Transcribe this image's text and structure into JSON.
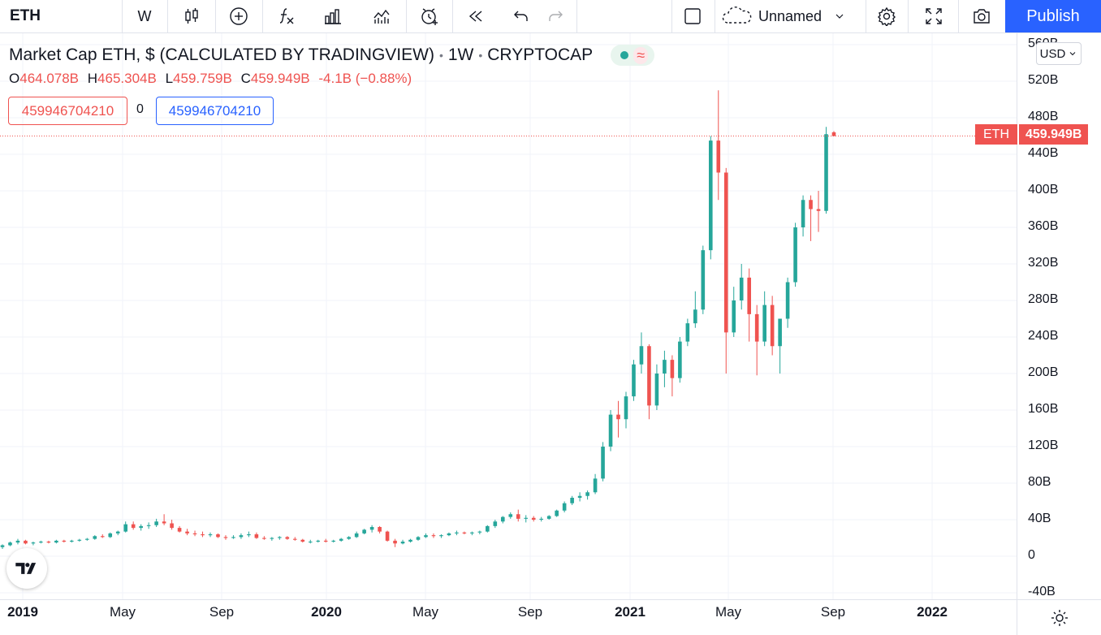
{
  "toolbar": {
    "symbol": "ETH",
    "interval": "W",
    "layout_name": "Unnamed",
    "publish_label": "Publish",
    "icons": [
      "candles-icon",
      "plus-circle-icon",
      "indicators-icon",
      "compare-icon",
      "alert-icon",
      "replay-icon",
      "undo-icon",
      "redo-icon",
      "layout-icon",
      "cloud-icon",
      "chevron-down-icon",
      "gear-icon",
      "fullscreen-icon",
      "camera-icon"
    ]
  },
  "legend": {
    "title": "Market Cap ETH, $ (CALCULATED BY TRADINGVIEW)",
    "interval": "1W",
    "exchange": "CRYPTOCAP",
    "status_wave": "≈",
    "ohlc": {
      "o_key": "O",
      "o": "464.078B",
      "h_key": "H",
      "h": "465.304B",
      "l_key": "L",
      "l": "459.759B",
      "c_key": "C",
      "c": "459.949B",
      "change": "-4.1B (−0.88%)"
    },
    "sell_value": "459946704210",
    "spread": "0",
    "buy_value": "459946704210"
  },
  "price_scale": {
    "currency": "USD",
    "ticks": [
      "560B",
      "520B",
      "480B",
      "440B",
      "400B",
      "360B",
      "320B",
      "280B",
      "240B",
      "200B",
      "160B",
      "120B",
      "80B",
      "40B",
      "0",
      "-40B"
    ],
    "last_symbol": "ETH",
    "last_value": "459.949B"
  },
  "time_scale": {
    "ticks": [
      "2019",
      "May",
      "Sep",
      "2020",
      "May",
      "Sep",
      "2021",
      "May",
      "Sep",
      "2022"
    ]
  },
  "colors": {
    "up": "#26a69a",
    "down": "#ef5350",
    "accent": "#2962ff",
    "grid": "#f0f3fa"
  },
  "chart_data": {
    "type": "candlestick",
    "title": "Market Cap ETH, $ (CALCULATED BY TRADINGVIEW)",
    "interval": "1W",
    "ylim": [
      -40,
      560
    ],
    "y_unit": "B USD",
    "last_close": 459.949,
    "candles": [
      {
        "o": 10,
        "h": 13,
        "l": 8,
        "c": 12
      },
      {
        "o": 12,
        "h": 16,
        "l": 11,
        "c": 15
      },
      {
        "o": 15,
        "h": 19,
        "l": 13,
        "c": 17
      },
      {
        "o": 17,
        "h": 18,
        "l": 13,
        "c": 14
      },
      {
        "o": 14,
        "h": 16,
        "l": 12,
        "c": 15
      },
      {
        "o": 15,
        "h": 17,
        "l": 14,
        "c": 16
      },
      {
        "o": 16,
        "h": 17,
        "l": 14,
        "c": 15
      },
      {
        "o": 15,
        "h": 18,
        "l": 14,
        "c": 17
      },
      {
        "o": 17,
        "h": 18,
        "l": 15,
        "c": 16
      },
      {
        "o": 16,
        "h": 18,
        "l": 15,
        "c": 17
      },
      {
        "o": 17,
        "h": 19,
        "l": 16,
        "c": 18
      },
      {
        "o": 18,
        "h": 20,
        "l": 17,
        "c": 19
      },
      {
        "o": 19,
        "h": 23,
        "l": 18,
        "c": 22
      },
      {
        "o": 22,
        "h": 24,
        "l": 20,
        "c": 21
      },
      {
        "o": 21,
        "h": 26,
        "l": 20,
        "c": 25
      },
      {
        "o": 25,
        "h": 28,
        "l": 23,
        "c": 27
      },
      {
        "o": 27,
        "h": 38,
        "l": 26,
        "c": 35
      },
      {
        "o": 35,
        "h": 38,
        "l": 29,
        "c": 31
      },
      {
        "o": 31,
        "h": 35,
        "l": 28,
        "c": 33
      },
      {
        "o": 33,
        "h": 37,
        "l": 30,
        "c": 34
      },
      {
        "o": 34,
        "h": 41,
        "l": 32,
        "c": 38
      },
      {
        "o": 38,
        "h": 46,
        "l": 34,
        "c": 36
      },
      {
        "o": 36,
        "h": 40,
        "l": 29,
        "c": 31
      },
      {
        "o": 31,
        "h": 33,
        "l": 26,
        "c": 27
      },
      {
        "o": 27,
        "h": 30,
        "l": 23,
        "c": 25
      },
      {
        "o": 25,
        "h": 28,
        "l": 22,
        "c": 24
      },
      {
        "o": 24,
        "h": 27,
        "l": 21,
        "c": 23
      },
      {
        "o": 23,
        "h": 26,
        "l": 21,
        "c": 24
      },
      {
        "o": 24,
        "h": 25,
        "l": 20,
        "c": 21
      },
      {
        "o": 21,
        "h": 23,
        "l": 18,
        "c": 20
      },
      {
        "o": 20,
        "h": 23,
        "l": 19,
        "c": 21
      },
      {
        "o": 21,
        "h": 25,
        "l": 19,
        "c": 23
      },
      {
        "o": 23,
        "h": 27,
        "l": 21,
        "c": 24
      },
      {
        "o": 24,
        "h": 26,
        "l": 19,
        "c": 20
      },
      {
        "o": 20,
        "h": 22,
        "l": 18,
        "c": 19
      },
      {
        "o": 19,
        "h": 21,
        "l": 17,
        "c": 20
      },
      {
        "o": 20,
        "h": 22,
        "l": 18,
        "c": 21
      },
      {
        "o": 21,
        "h": 22,
        "l": 18,
        "c": 19
      },
      {
        "o": 19,
        "h": 21,
        "l": 17,
        "c": 18
      },
      {
        "o": 18,
        "h": 19,
        "l": 15,
        "c": 16
      },
      {
        "o": 16,
        "h": 18,
        "l": 14,
        "c": 16
      },
      {
        "o": 16,
        "h": 18,
        "l": 15,
        "c": 17
      },
      {
        "o": 17,
        "h": 19,
        "l": 15,
        "c": 16
      },
      {
        "o": 16,
        "h": 18,
        "l": 15,
        "c": 17
      },
      {
        "o": 17,
        "h": 20,
        "l": 16,
        "c": 19
      },
      {
        "o": 19,
        "h": 22,
        "l": 18,
        "c": 21
      },
      {
        "o": 21,
        "h": 27,
        "l": 20,
        "c": 25
      },
      {
        "o": 25,
        "h": 30,
        "l": 24,
        "c": 29
      },
      {
        "o": 29,
        "h": 34,
        "l": 26,
        "c": 32
      },
      {
        "o": 32,
        "h": 33,
        "l": 25,
        "c": 27
      },
      {
        "o": 27,
        "h": 28,
        "l": 16,
        "c": 17
      },
      {
        "o": 17,
        "h": 19,
        "l": 10,
        "c": 14
      },
      {
        "o": 14,
        "h": 18,
        "l": 13,
        "c": 16
      },
      {
        "o": 16,
        "h": 19,
        "l": 15,
        "c": 18
      },
      {
        "o": 18,
        "h": 22,
        "l": 17,
        "c": 21
      },
      {
        "o": 21,
        "h": 25,
        "l": 20,
        "c": 23
      },
      {
        "o": 23,
        "h": 25,
        "l": 20,
        "c": 22
      },
      {
        "o": 22,
        "h": 24,
        "l": 20,
        "c": 23
      },
      {
        "o": 23,
        "h": 26,
        "l": 22,
        "c": 25
      },
      {
        "o": 25,
        "h": 28,
        "l": 23,
        "c": 26
      },
      {
        "o": 26,
        "h": 27,
        "l": 24,
        "c": 25
      },
      {
        "o": 25,
        "h": 27,
        "l": 23,
        "c": 26
      },
      {
        "o": 26,
        "h": 28,
        "l": 24,
        "c": 27
      },
      {
        "o": 27,
        "h": 34,
        "l": 26,
        "c": 33
      },
      {
        "o": 33,
        "h": 40,
        "l": 31,
        "c": 38
      },
      {
        "o": 38,
        "h": 44,
        "l": 36,
        "c": 43
      },
      {
        "o": 43,
        "h": 48,
        "l": 41,
        "c": 46
      },
      {
        "o": 46,
        "h": 51,
        "l": 38,
        "c": 41
      },
      {
        "o": 41,
        "h": 45,
        "l": 37,
        "c": 42
      },
      {
        "o": 42,
        "h": 44,
        "l": 38,
        "c": 40
      },
      {
        "o": 40,
        "h": 43,
        "l": 38,
        "c": 41
      },
      {
        "o": 41,
        "h": 45,
        "l": 40,
        "c": 44
      },
      {
        "o": 44,
        "h": 51,
        "l": 43,
        "c": 50
      },
      {
        "o": 50,
        "h": 60,
        "l": 48,
        "c": 58
      },
      {
        "o": 58,
        "h": 66,
        "l": 56,
        "c": 64
      },
      {
        "o": 64,
        "h": 70,
        "l": 60,
        "c": 66
      },
      {
        "o": 66,
        "h": 72,
        "l": 62,
        "c": 70
      },
      {
        "o": 70,
        "h": 90,
        "l": 68,
        "c": 85
      },
      {
        "o": 85,
        "h": 125,
        "l": 82,
        "c": 120
      },
      {
        "o": 120,
        "h": 160,
        "l": 115,
        "c": 155
      },
      {
        "o": 155,
        "h": 170,
        "l": 130,
        "c": 150
      },
      {
        "o": 150,
        "h": 180,
        "l": 140,
        "c": 175
      },
      {
        "o": 175,
        "h": 215,
        "l": 170,
        "c": 210
      },
      {
        "o": 210,
        "h": 245,
        "l": 200,
        "c": 230
      },
      {
        "o": 230,
        "h": 232,
        "l": 150,
        "c": 165
      },
      {
        "o": 165,
        "h": 210,
        "l": 160,
        "c": 200
      },
      {
        "o": 200,
        "h": 225,
        "l": 185,
        "c": 215
      },
      {
        "o": 215,
        "h": 220,
        "l": 175,
        "c": 195
      },
      {
        "o": 195,
        "h": 240,
        "l": 190,
        "c": 235
      },
      {
        "o": 235,
        "h": 260,
        "l": 230,
        "c": 255
      },
      {
        "o": 255,
        "h": 290,
        "l": 250,
        "c": 270
      },
      {
        "o": 270,
        "h": 340,
        "l": 265,
        "c": 335
      },
      {
        "o": 335,
        "h": 460,
        "l": 325,
        "c": 455
      },
      {
        "o": 455,
        "h": 510,
        "l": 390,
        "c": 420
      },
      {
        "o": 420,
        "h": 425,
        "l": 200,
        "c": 245
      },
      {
        "o": 245,
        "h": 295,
        "l": 240,
        "c": 280
      },
      {
        "o": 280,
        "h": 320,
        "l": 270,
        "c": 305
      },
      {
        "o": 305,
        "h": 315,
        "l": 235,
        "c": 265
      },
      {
        "o": 265,
        "h": 275,
        "l": 198,
        "c": 235
      },
      {
        "o": 235,
        "h": 290,
        "l": 230,
        "c": 275
      },
      {
        "o": 275,
        "h": 285,
        "l": 220,
        "c": 230
      },
      {
        "o": 230,
        "h": 260,
        "l": 200,
        "c": 260
      },
      {
        "o": 260,
        "h": 305,
        "l": 250,
        "c": 300
      },
      {
        "o": 300,
        "h": 365,
        "l": 295,
        "c": 360
      },
      {
        "o": 360,
        "h": 395,
        "l": 350,
        "c": 390
      },
      {
        "o": 390,
        "h": 395,
        "l": 345,
        "c": 380
      },
      {
        "o": 380,
        "h": 400,
        "l": 355,
        "c": 378
      },
      {
        "o": 378,
        "h": 470,
        "l": 375,
        "c": 462
      },
      {
        "o": 464.078,
        "h": 465.304,
        "l": 459.759,
        "c": 459.949
      }
    ]
  }
}
